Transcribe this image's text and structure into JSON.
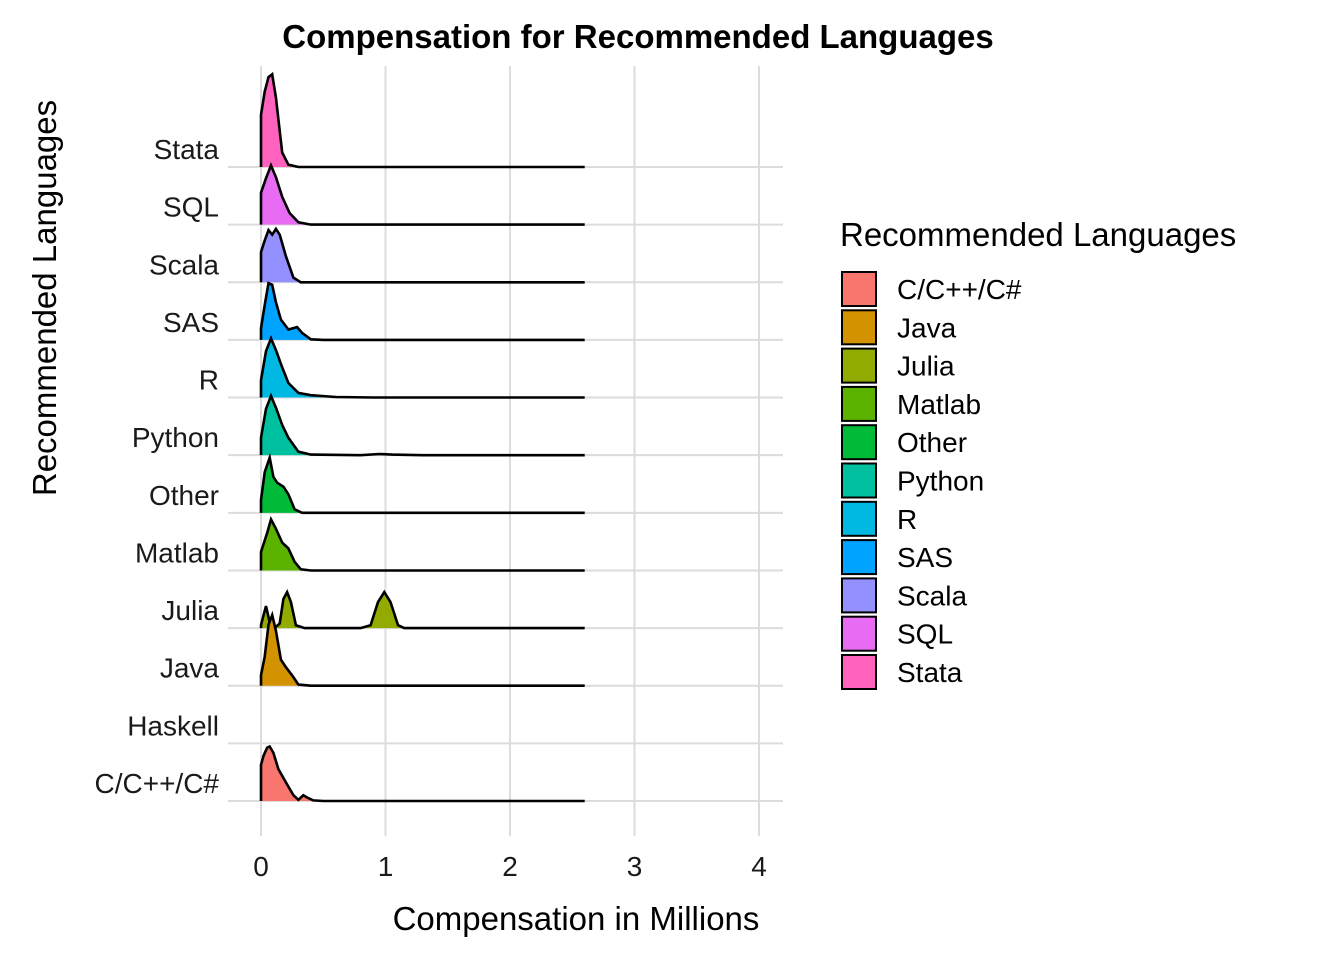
{
  "chart_data": {
    "type": "ridgeline",
    "title": "Compensation for Recommended Languages",
    "xlabel": "Compensation in Millions",
    "ylabel": "Recommended Languages",
    "xlim": [
      0,
      4
    ],
    "xticks": [
      0,
      1,
      2,
      3,
      4
    ],
    "grid": true,
    "legend": {
      "title": "Recommended Languages",
      "position": "right"
    },
    "categories": [
      "C/C++/C#",
      "Haskell",
      "Java",
      "Julia",
      "Matlab",
      "Other",
      "Python",
      "R",
      "SAS",
      "Scala",
      "SQL",
      "Stata"
    ],
    "series": [
      {
        "name": "C/C++/C#",
        "color": "#F8766D",
        "range": [
          0,
          2.6
        ],
        "density": [
          [
            0,
            0.62
          ],
          [
            0.02,
            0.78
          ],
          [
            0.05,
            0.92
          ],
          [
            0.07,
            0.94
          ],
          [
            0.1,
            0.83
          ],
          [
            0.14,
            0.55
          ],
          [
            0.2,
            0.32
          ],
          [
            0.26,
            0.1
          ],
          [
            0.3,
            0.02
          ],
          [
            0.34,
            0.1
          ],
          [
            0.37,
            0.06
          ],
          [
            0.42,
            0.01
          ],
          [
            0.5,
            0
          ],
          [
            2.6,
            0
          ]
        ]
      },
      {
        "name": "Java",
        "color": "#D39200",
        "range": [
          0,
          2.6
        ],
        "density": [
          [
            0,
            0.18
          ],
          [
            0.03,
            0.5
          ],
          [
            0.06,
            1.05
          ],
          [
            0.09,
            1.22
          ],
          [
            0.12,
            0.95
          ],
          [
            0.16,
            0.45
          ],
          [
            0.2,
            0.32
          ],
          [
            0.25,
            0.18
          ],
          [
            0.3,
            0.02
          ],
          [
            0.4,
            0
          ],
          [
            2.6,
            0
          ]
        ]
      },
      {
        "name": "Julia",
        "color": "#93AA00",
        "range": [
          0,
          2.6
        ],
        "density": [
          [
            0,
            0.05
          ],
          [
            0.02,
            0.22
          ],
          [
            0.04,
            0.38
          ],
          [
            0.07,
            0.1
          ],
          [
            0.09,
            0
          ],
          [
            0.12,
            0.02
          ],
          [
            0.15,
            0.08
          ],
          [
            0.18,
            0.5
          ],
          [
            0.21,
            0.62
          ],
          [
            0.24,
            0.45
          ],
          [
            0.28,
            0.05
          ],
          [
            0.35,
            0
          ],
          [
            0.8,
            0
          ],
          [
            0.88,
            0.05
          ],
          [
            0.94,
            0.45
          ],
          [
            0.99,
            0.62
          ],
          [
            1.04,
            0.45
          ],
          [
            1.1,
            0.05
          ],
          [
            1.15,
            0
          ],
          [
            2.6,
            0
          ]
        ]
      },
      {
        "name": "Matlab",
        "color": "#5BB300",
        "range": [
          0,
          2.6
        ],
        "density": [
          [
            0,
            0.32
          ],
          [
            0.05,
            0.65
          ],
          [
            0.08,
            0.88
          ],
          [
            0.12,
            0.72
          ],
          [
            0.17,
            0.48
          ],
          [
            0.22,
            0.38
          ],
          [
            0.27,
            0.15
          ],
          [
            0.32,
            0.02
          ],
          [
            0.4,
            0
          ],
          [
            2.6,
            0
          ]
        ]
      },
      {
        "name": "Other",
        "color": "#00BA38",
        "range": [
          0,
          2.6
        ],
        "density": [
          [
            0,
            0.22
          ],
          [
            0.03,
            0.7
          ],
          [
            0.07,
            0.95
          ],
          [
            0.1,
            0.62
          ],
          [
            0.13,
            0.52
          ],
          [
            0.18,
            0.45
          ],
          [
            0.22,
            0.32
          ],
          [
            0.27,
            0.06
          ],
          [
            0.33,
            0
          ],
          [
            2.6,
            0
          ]
        ]
      },
      {
        "name": "Python",
        "color": "#00C19F",
        "range": [
          0,
          2.6
        ],
        "density": [
          [
            0,
            0.3
          ],
          [
            0.04,
            0.8
          ],
          [
            0.08,
            1.02
          ],
          [
            0.12,
            0.82
          ],
          [
            0.17,
            0.52
          ],
          [
            0.22,
            0.3
          ],
          [
            0.3,
            0.06
          ],
          [
            0.4,
            0.01
          ],
          [
            0.8,
            0
          ],
          [
            0.95,
            0.02
          ],
          [
            1.05,
            0.01
          ],
          [
            1.3,
            0
          ],
          [
            2.6,
            0
          ]
        ]
      },
      {
        "name": "R",
        "color": "#00B9E3",
        "range": [
          0,
          2.6
        ],
        "density": [
          [
            0,
            0.3
          ],
          [
            0.04,
            0.8
          ],
          [
            0.08,
            1.02
          ],
          [
            0.12,
            0.82
          ],
          [
            0.17,
            0.52
          ],
          [
            0.22,
            0.25
          ],
          [
            0.3,
            0.08
          ],
          [
            0.4,
            0.04
          ],
          [
            0.6,
            0.01
          ],
          [
            0.9,
            0
          ],
          [
            2.6,
            0
          ]
        ]
      },
      {
        "name": "SAS",
        "color": "#00A3FF",
        "range": [
          0,
          2.6
        ],
        "density": [
          [
            0,
            0.2
          ],
          [
            0.03,
            0.6
          ],
          [
            0.06,
            0.98
          ],
          [
            0.09,
            0.95
          ],
          [
            0.12,
            0.65
          ],
          [
            0.16,
            0.35
          ],
          [
            0.22,
            0.18
          ],
          [
            0.29,
            0.22
          ],
          [
            0.33,
            0.12
          ],
          [
            0.4,
            0.01
          ],
          [
            0.5,
            0
          ],
          [
            2.6,
            0
          ]
        ]
      },
      {
        "name": "Scala",
        "color": "#9590FF",
        "range": [
          0,
          2.6
        ],
        "density": [
          [
            0,
            0.52
          ],
          [
            0.03,
            0.72
          ],
          [
            0.06,
            0.9
          ],
          [
            0.09,
            0.82
          ],
          [
            0.12,
            0.92
          ],
          [
            0.15,
            0.82
          ],
          [
            0.2,
            0.45
          ],
          [
            0.26,
            0.08
          ],
          [
            0.32,
            0
          ],
          [
            2.6,
            0
          ]
        ]
      },
      {
        "name": "SQL",
        "color": "#E76BF3",
        "range": [
          0,
          2.6
        ],
        "density": [
          [
            0,
            0.55
          ],
          [
            0.04,
            0.8
          ],
          [
            0.08,
            1.02
          ],
          [
            0.12,
            0.82
          ],
          [
            0.17,
            0.48
          ],
          [
            0.23,
            0.2
          ],
          [
            0.3,
            0.04
          ],
          [
            0.4,
            0
          ],
          [
            2.6,
            0
          ]
        ]
      },
      {
        "name": "Stata",
        "color": "#FF62BC",
        "range": [
          0,
          2.6
        ],
        "density": [
          [
            0,
            0.9
          ],
          [
            0.03,
            1.3
          ],
          [
            0.06,
            1.55
          ],
          [
            0.09,
            1.6
          ],
          [
            0.12,
            1.2
          ],
          [
            0.17,
            0.25
          ],
          [
            0.22,
            0.04
          ],
          [
            0.3,
            0
          ],
          [
            2.6,
            0
          ]
        ]
      }
    ]
  }
}
